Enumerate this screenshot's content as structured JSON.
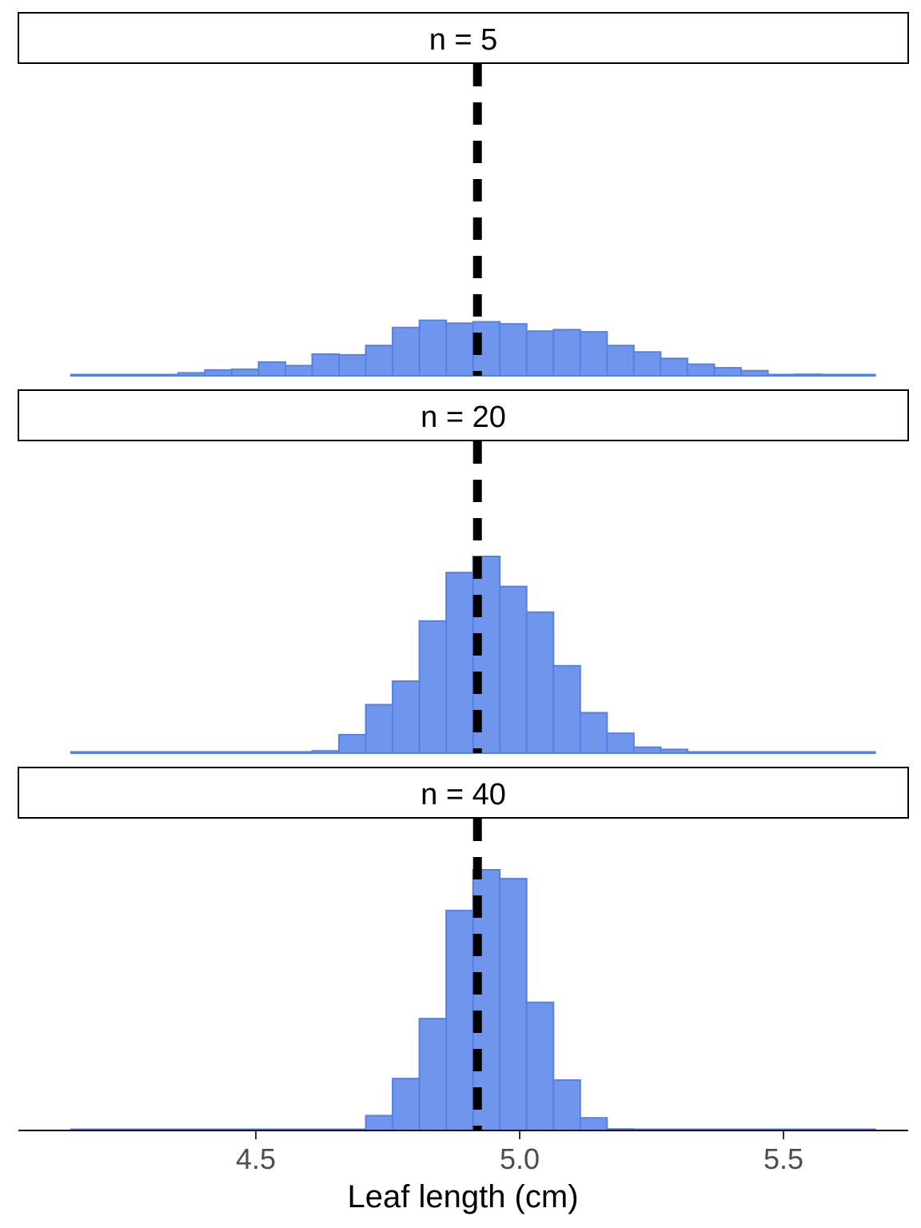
{
  "chart_data": {
    "type": "bar",
    "xlabel": "Leaf length (cm)",
    "ylabel": "",
    "xlim": [
      4.125,
      5.725
    ],
    "x_ticks": [
      "4.5",
      "5.0",
      "5.5"
    ],
    "x_tick_values": [
      4.5,
      5.0,
      5.5
    ],
    "reference_line": {
      "x": 4.92,
      "style": "dashed",
      "color": "#000000"
    },
    "bar_fill": "#6f96ec",
    "bar_stroke": "#5580e6",
    "bin_width": 0.0508,
    "bin_start": 4.1496,
    "facets": [
      {
        "label": "n = 5",
        "ymax": 140,
        "counts": [
          1,
          1,
          1,
          0,
          4,
          8,
          9,
          19,
          14,
          30,
          29,
          42,
          67,
          77,
          73,
          75,
          72,
          62,
          64,
          61,
          42,
          33,
          24,
          16,
          11,
          7,
          0,
          2,
          0,
          1
        ]
      },
      {
        "label": "n = 20",
        "ymax": 268,
        "counts": [
          1,
          1,
          1,
          1,
          1,
          1,
          1,
          1,
          1,
          3,
          25,
          66,
          98,
          180,
          246,
          268,
          227,
          192,
          119,
          55,
          27,
          8,
          5,
          1,
          1,
          1,
          1,
          1,
          1,
          1
        ]
      },
      {
        "label": "n = 40",
        "ymax": 352,
        "counts": [
          0,
          0,
          0,
          0,
          0,
          0,
          0,
          0,
          0,
          1,
          0,
          20,
          70,
          151,
          297,
          352,
          340,
          173,
          68,
          17,
          2,
          0,
          0,
          0,
          0,
          0,
          0,
          0,
          0,
          0
        ]
      }
    ]
  }
}
